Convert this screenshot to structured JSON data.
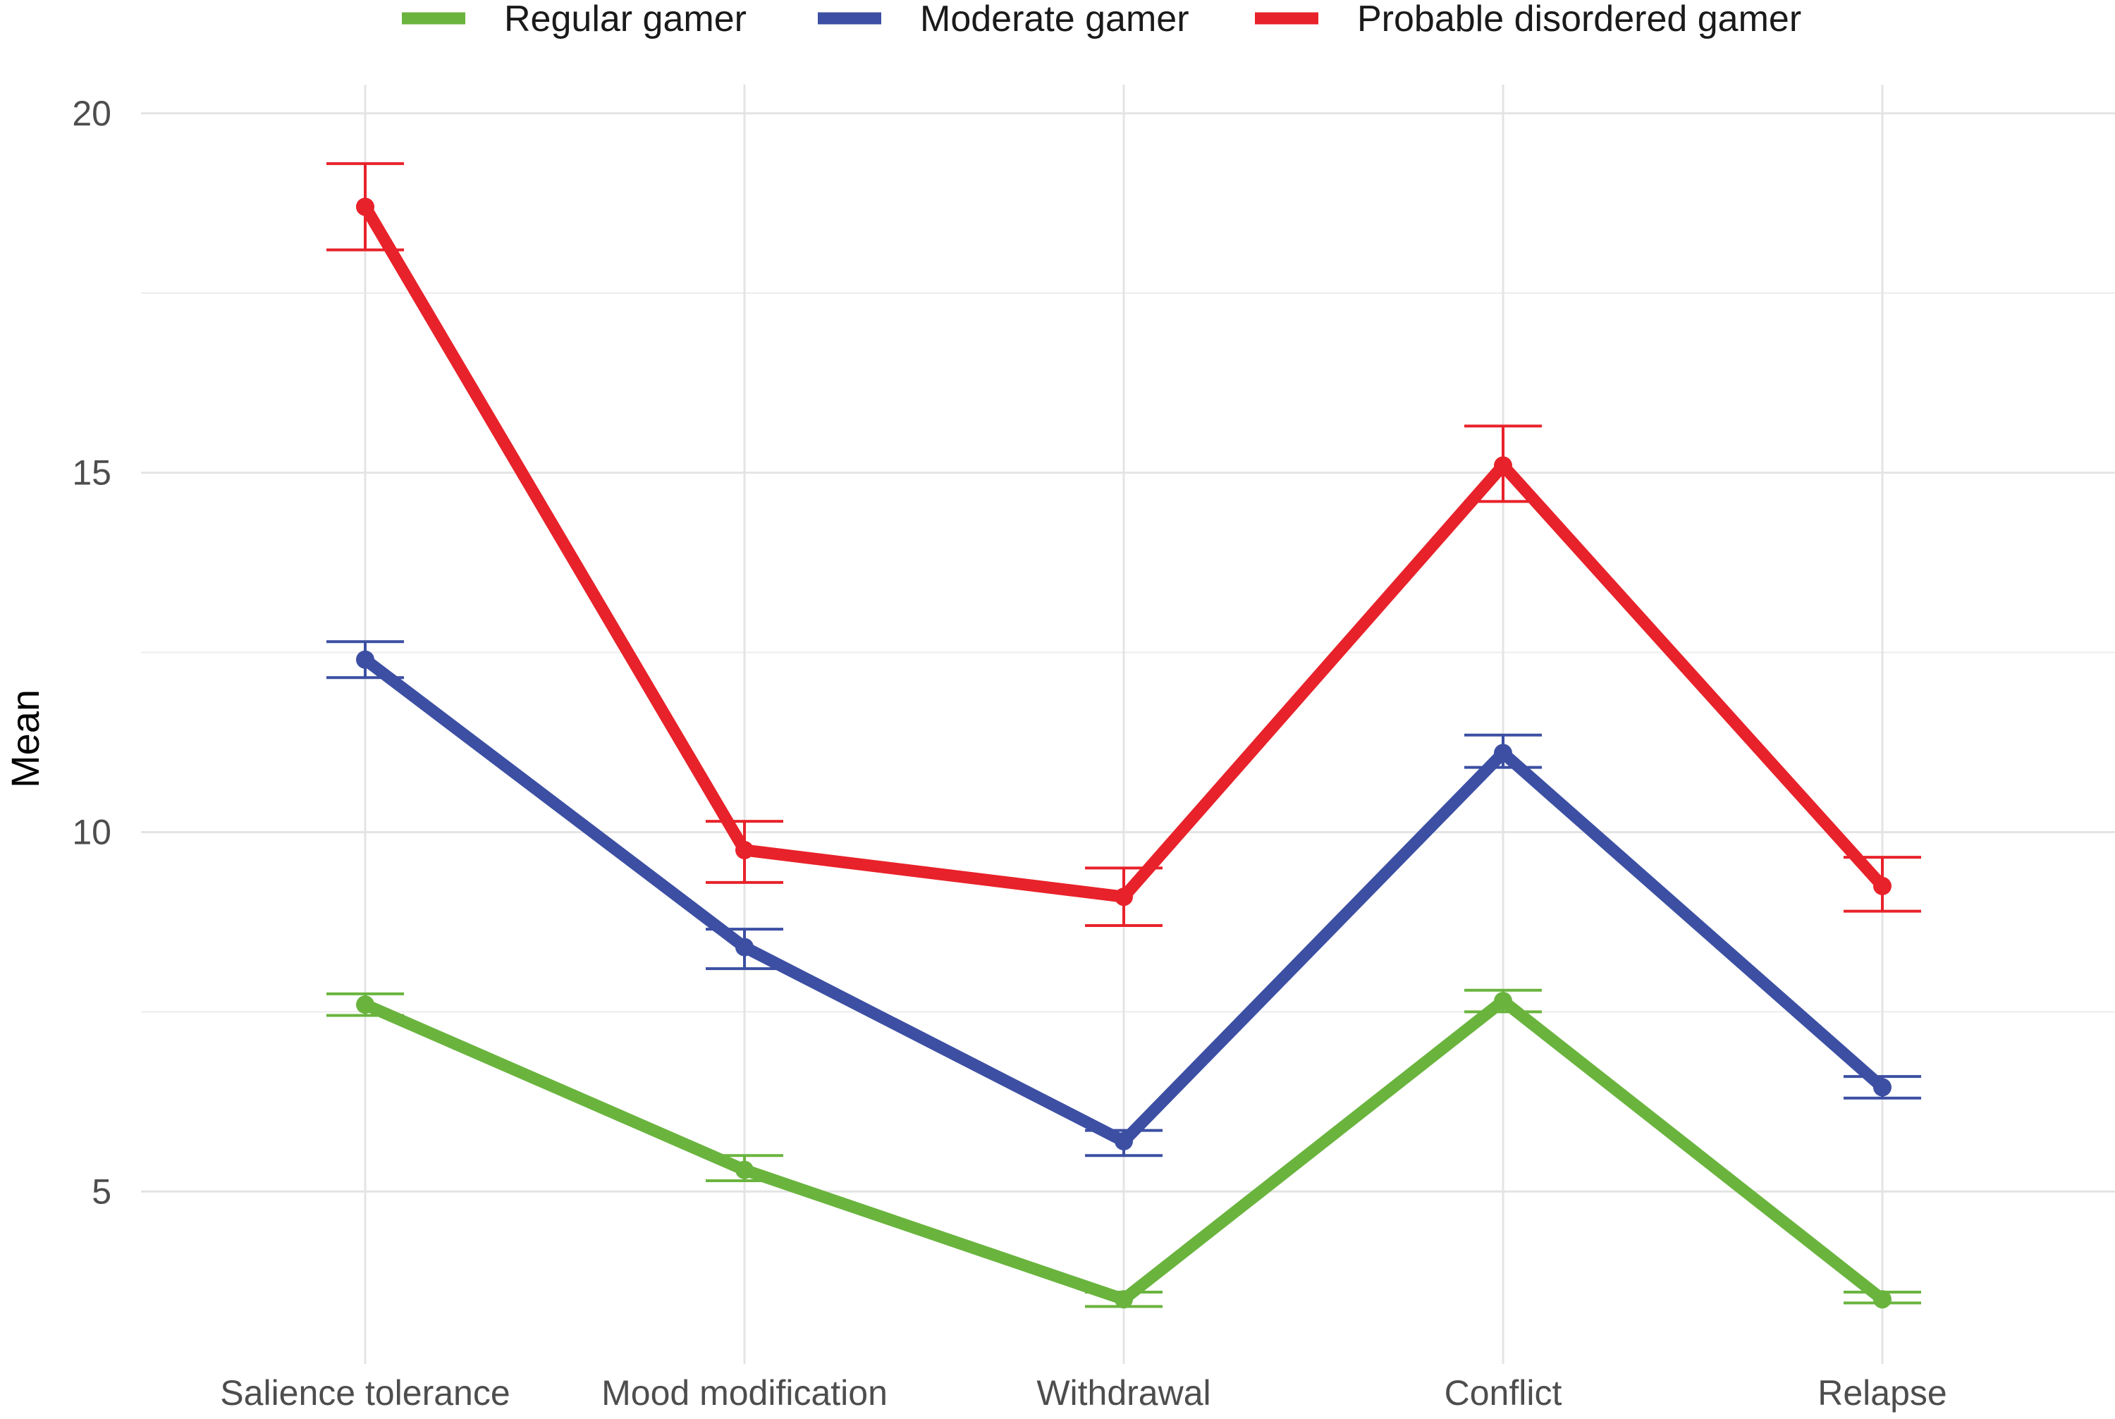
{
  "chart_data": {
    "type": "line",
    "title": "",
    "xlabel": "",
    "ylabel": "Mean",
    "categories": [
      "Salience tolerance",
      "Mood modification",
      "Withdrawal",
      "Conflict",
      "Relapse"
    ],
    "ylim": [
      2.6,
      20.4
    ],
    "yticks": [
      5,
      10,
      15,
      20
    ],
    "ytick_labels": [
      "5",
      "10",
      "15",
      "20"
    ],
    "grid": true,
    "legend_position": "top",
    "series": [
      {
        "name": "Regular gamer",
        "color": "#6ab43e",
        "values": [
          7.6,
          5.3,
          3.5,
          7.65,
          3.5
        ],
        "err_low": [
          7.45,
          5.15,
          3.4,
          7.5,
          3.45
        ],
        "err_high": [
          7.75,
          5.5,
          3.6,
          7.8,
          3.6
        ]
      },
      {
        "name": "Moderate gamer",
        "color": "#3c4fa3",
        "values": [
          12.4,
          8.4,
          5.7,
          11.1,
          6.45
        ],
        "err_low": [
          12.15,
          8.1,
          5.5,
          10.9,
          6.3
        ],
        "err_high": [
          12.65,
          8.65,
          5.85,
          11.35,
          6.6
        ]
      },
      {
        "name": "Probable disordered gamer",
        "color": "#e8222a",
        "values": [
          18.7,
          9.75,
          9.1,
          15.1,
          9.25
        ],
        "err_low": [
          18.1,
          9.3,
          8.7,
          14.6,
          8.9
        ],
        "err_high": [
          19.3,
          10.15,
          9.5,
          15.65,
          9.65
        ]
      }
    ]
  }
}
